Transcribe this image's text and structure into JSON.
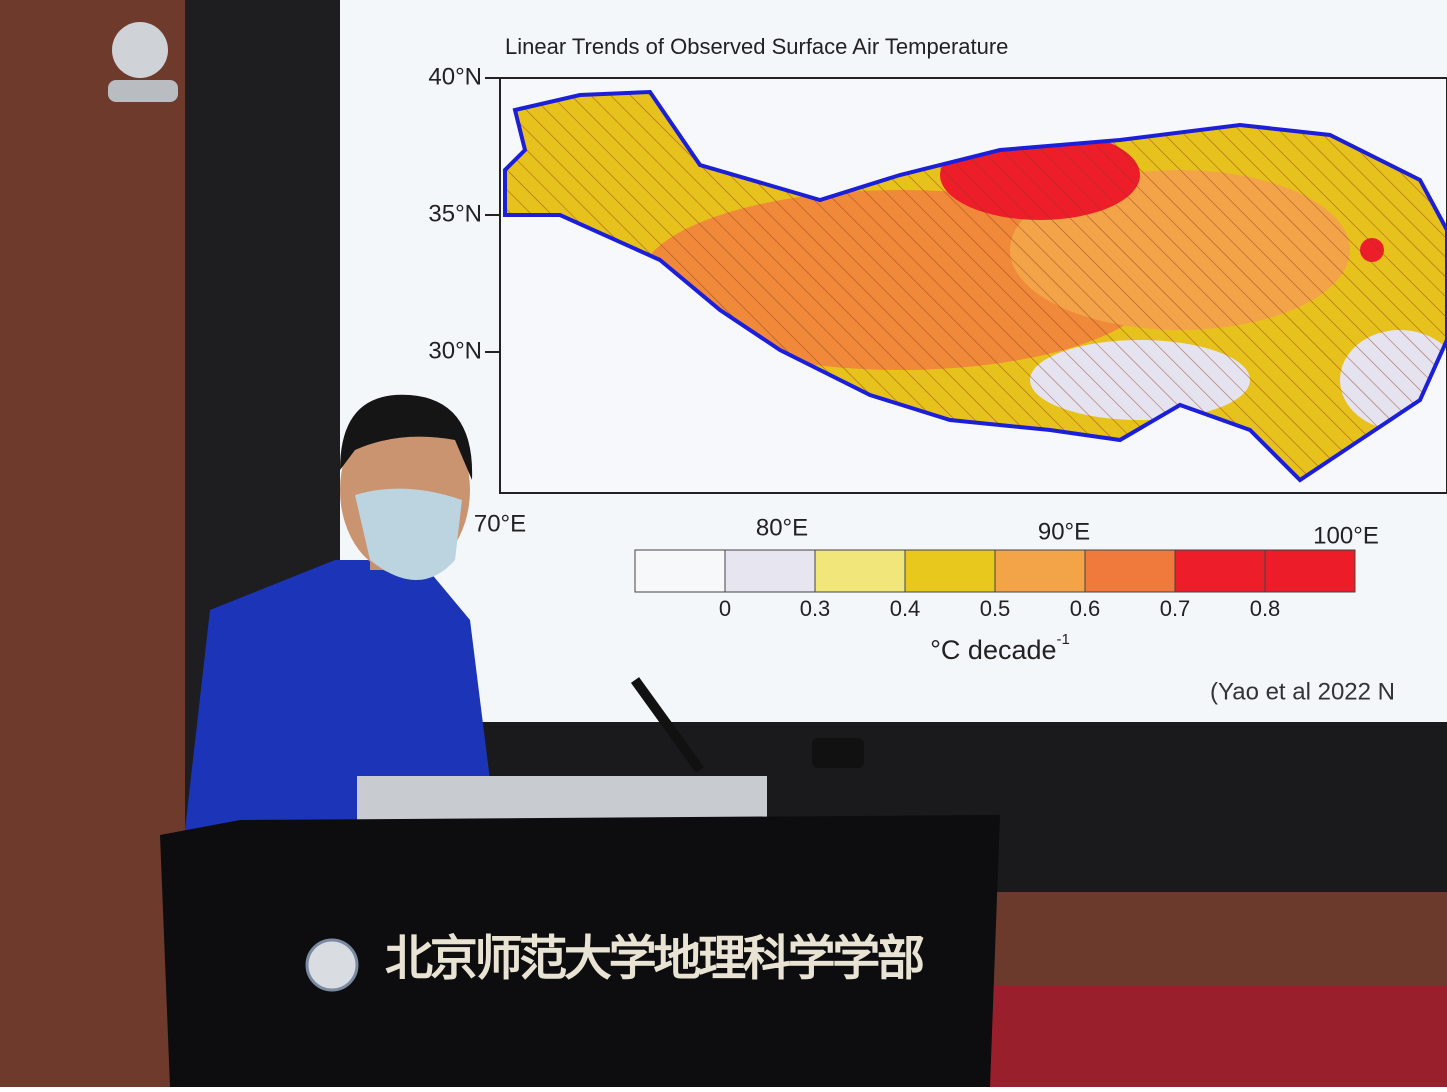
{
  "screen": {
    "title": "Linear Trends of Observed Surface Air Temperature",
    "lat_labels": [
      "40°N",
      "35°N",
      "30°N"
    ],
    "lon_labels": [
      "70°E",
      "80°E",
      "90°E",
      "100°E"
    ],
    "colorbar_labels": [
      "0",
      "0.3",
      "0.4",
      "0.5",
      "0.6",
      "0.7",
      "0.8"
    ],
    "unit": {
      "text": "°C decade",
      "exponent": "-1"
    },
    "citation": "(Yao et al 2022 N"
  },
  "podium": {
    "text": "北京师范大学地理科学学部"
  }
}
